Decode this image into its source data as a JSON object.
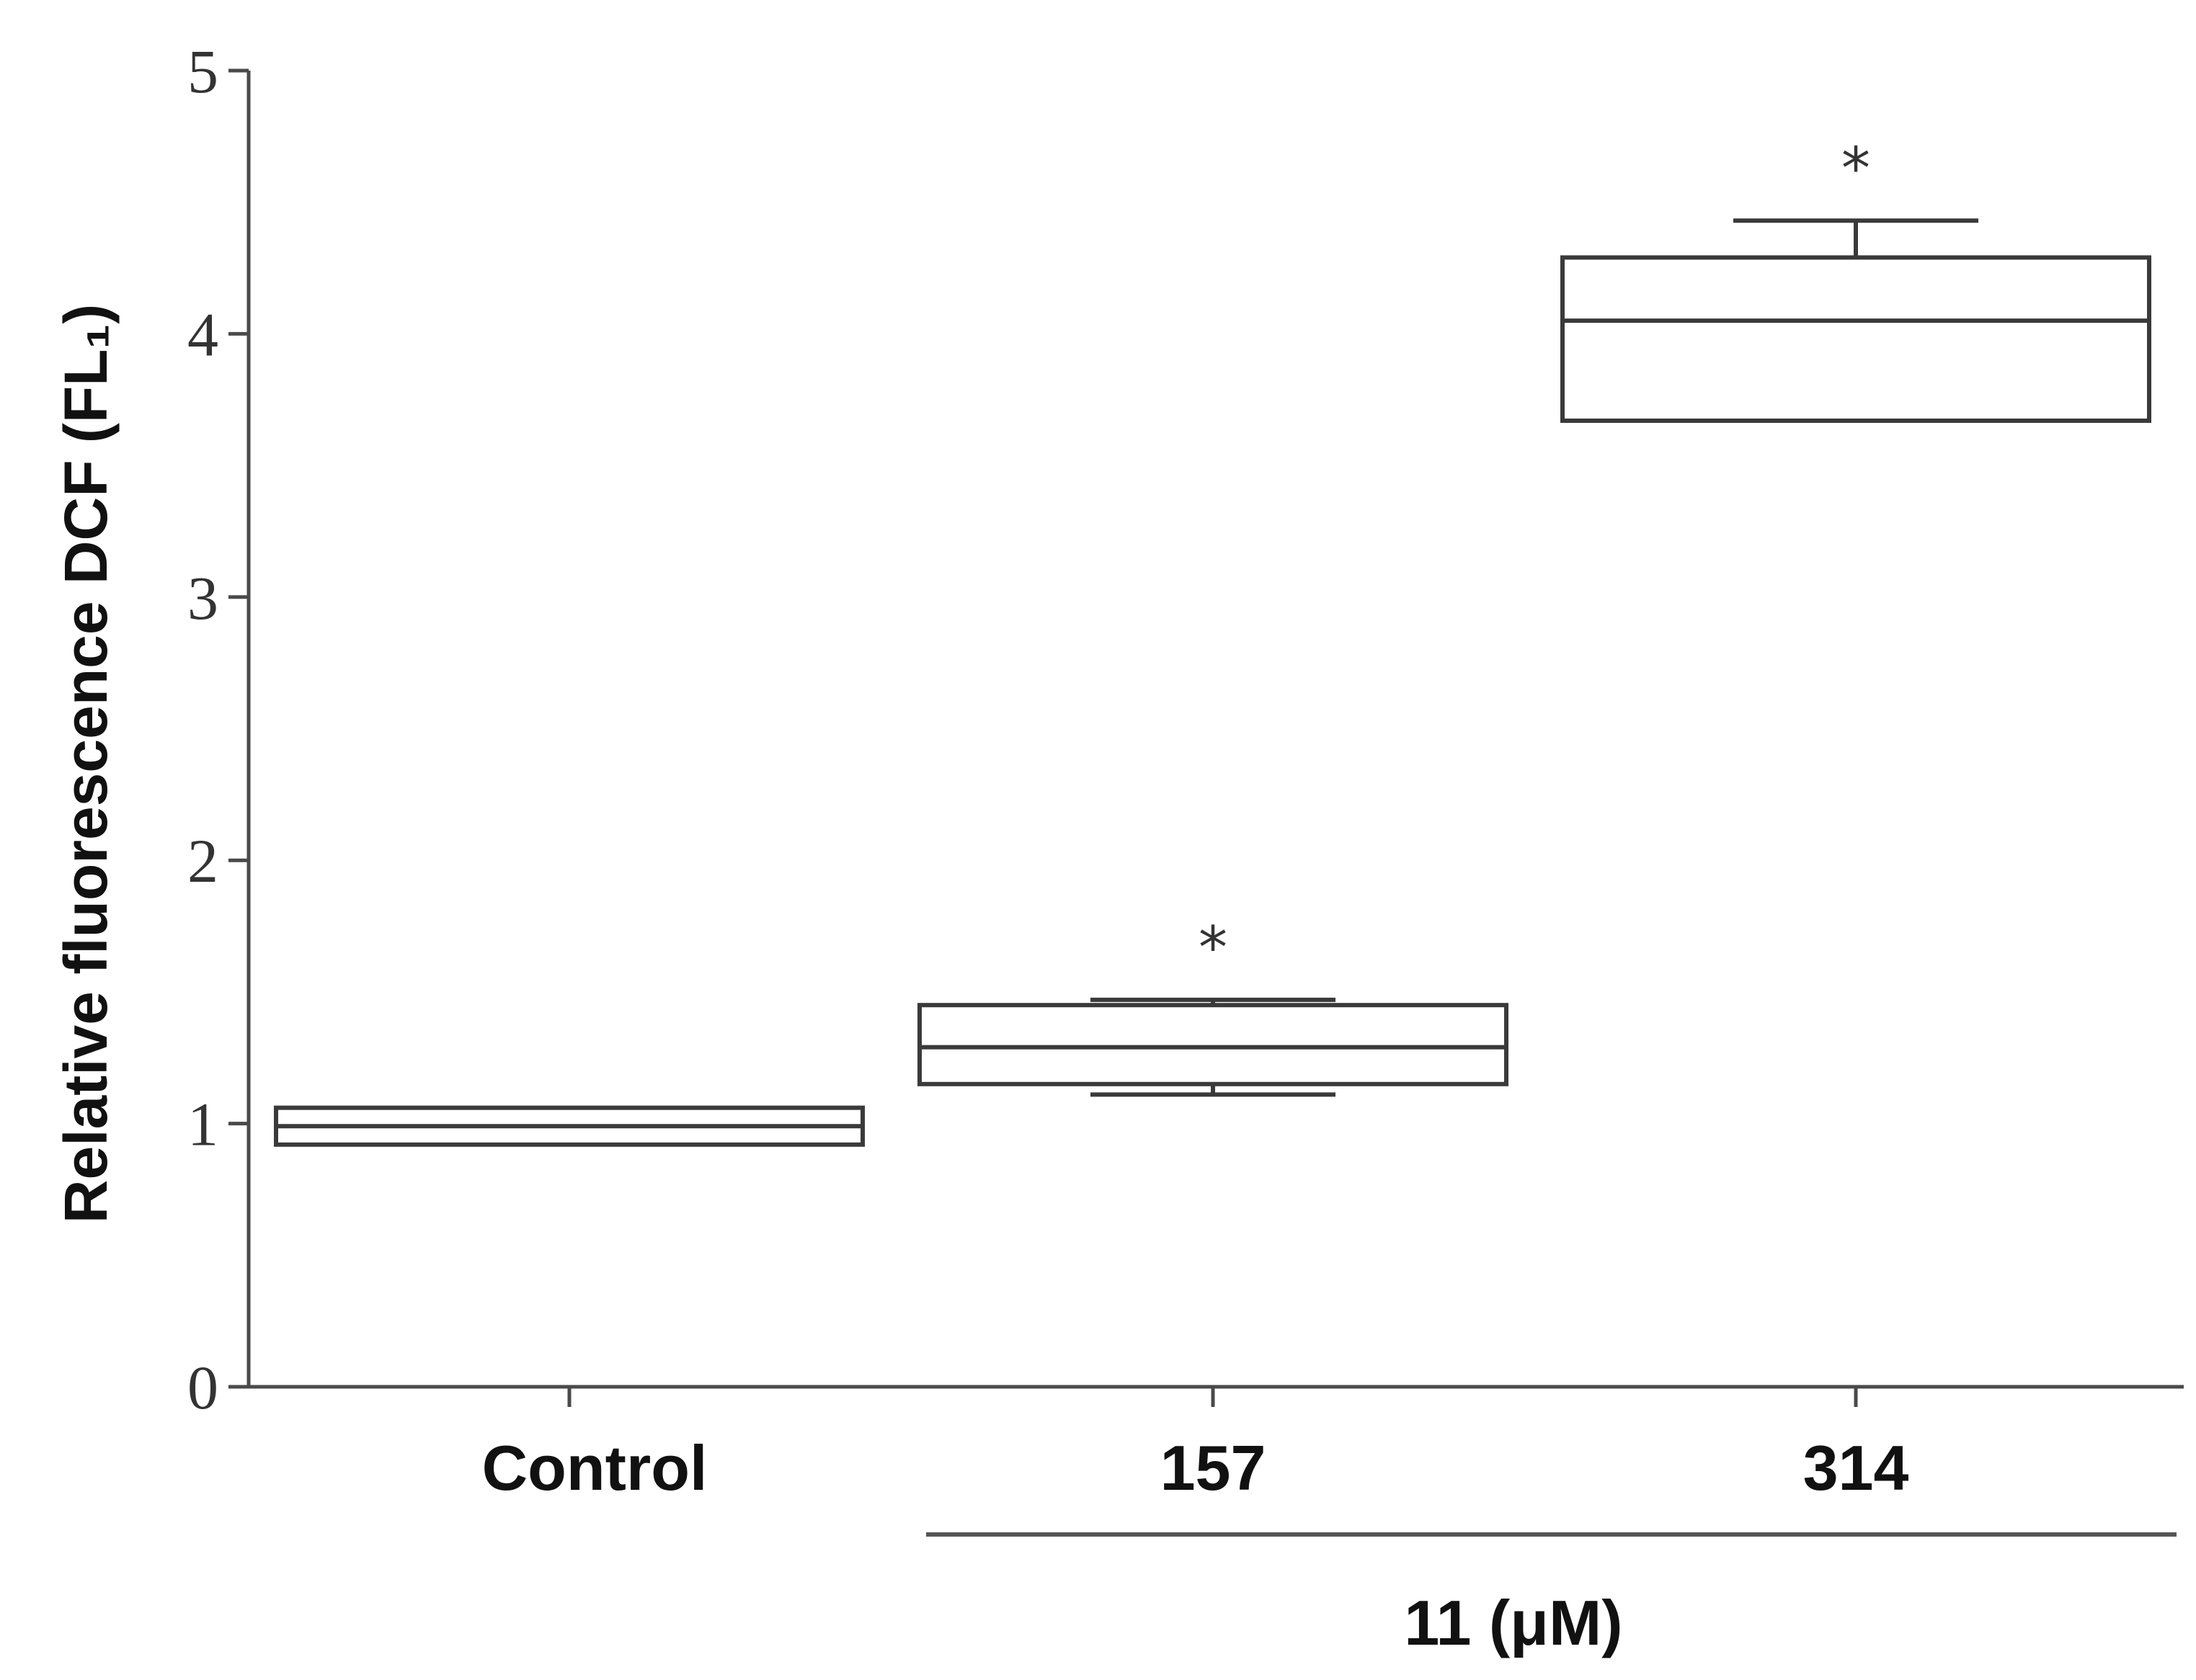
{
  "chart_data": {
    "type": "box",
    "categories": [
      "Control",
      "157",
      "314"
    ],
    "ylabel": "Relative fluorescence DCF (FL₁)",
    "xlabel": "",
    "group_label": "11 (μM)",
    "grouped_categories": [
      "157",
      "314"
    ],
    "ylim": [
      0,
      5
    ],
    "yticks": [
      "0",
      "1",
      "2",
      "3",
      "4",
      "5"
    ],
    "series": [
      {
        "boxes": [
          {
            "category": "Control",
            "q1": 0.92,
            "median": 0.99,
            "q3": 1.06,
            "whisker_low": 0.92,
            "whisker_high": 1.06,
            "annotation": ""
          },
          {
            "category": "157",
            "q1": 1.15,
            "median": 1.29,
            "q3": 1.45,
            "whisker_low": 1.11,
            "whisker_high": 1.47,
            "annotation": "*"
          },
          {
            "category": "314",
            "q1": 3.67,
            "median": 4.05,
            "q3": 4.29,
            "whisker_low": 3.67,
            "whisker_high": 4.43,
            "annotation": "*"
          }
        ]
      }
    ],
    "grid": false,
    "legend": "none",
    "colors": {
      "axis": "#4a4a4a",
      "box": "#3a3a3a",
      "fill": "#ffffff"
    }
  }
}
